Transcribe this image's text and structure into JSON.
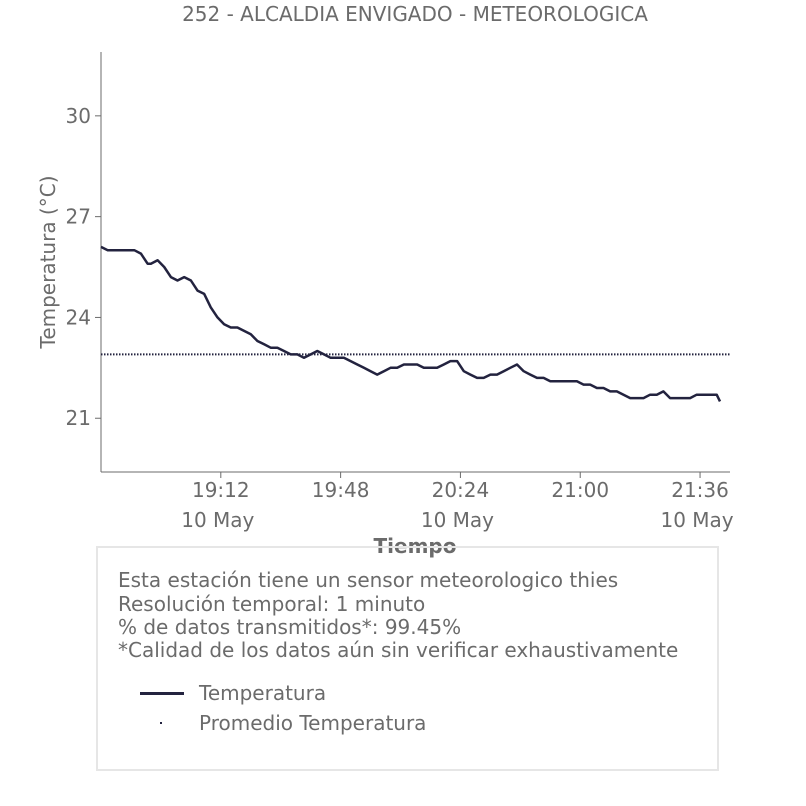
{
  "chart_data": {
    "type": "line",
    "title": "252 - ALCALDIA ENVIGADO - METEOROLOGICA",
    "xlabel": "Tiempo",
    "ylabel": "Temperatura (°C)",
    "ylim": [
      19.4,
      31.9
    ],
    "xlim": [
      "18:36",
      "21:45"
    ],
    "grid": false,
    "y_ticks": [
      "21",
      "24",
      "27",
      "30"
    ],
    "x_ticks": [
      {
        "time": "19:12",
        "date": "10 May"
      },
      {
        "time": "19:48",
        "date": ""
      },
      {
        "time": "20:24",
        "date": "10 May"
      },
      {
        "time": "21:00",
        "date": ""
      },
      {
        "time": "21:36",
        "date": "10 May"
      }
    ],
    "series": [
      {
        "name": "Temperatura",
        "color": "#23233f",
        "style": "solid",
        "x": [
          "18:36",
          "18:38",
          "18:46",
          "18:48",
          "18:50",
          "18:51",
          "18:53",
          "18:55",
          "18:57",
          "18:59",
          "19:01",
          "19:03",
          "19:05",
          "19:07",
          "19:09",
          "19:11",
          "19:13",
          "19:15",
          "19:17",
          "19:19",
          "19:21",
          "19:23",
          "19:25",
          "19:27",
          "19:29",
          "19:31",
          "19:33",
          "19:35",
          "19:37",
          "19:39",
          "19:41",
          "19:43",
          "19:45",
          "19:47",
          "19:49",
          "19:51",
          "19:53",
          "19:55",
          "19:57",
          "19:59",
          "20:01",
          "20:03",
          "20:05",
          "20:07",
          "20:09",
          "20:11",
          "20:13",
          "20:15",
          "20:17",
          "20:19",
          "20:21",
          "20:23",
          "20:25",
          "20:27",
          "20:29",
          "20:31",
          "20:33",
          "20:35",
          "20:37",
          "20:39",
          "20:41",
          "20:43",
          "20:45",
          "20:47",
          "20:49",
          "20:51",
          "20:53",
          "20:55",
          "20:57",
          "20:59",
          "21:01",
          "21:03",
          "21:05",
          "21:07",
          "21:09",
          "21:11",
          "21:13",
          "21:15",
          "21:17",
          "21:19",
          "21:21",
          "21:23",
          "21:25",
          "21:27",
          "21:29",
          "21:31",
          "21:33",
          "21:35",
          "21:37",
          "21:39",
          "21:41",
          "21:42"
        ],
        "values": [
          26.1,
          26.0,
          26.0,
          25.9,
          25.6,
          25.6,
          25.7,
          25.5,
          25.2,
          25.1,
          25.2,
          25.1,
          24.8,
          24.7,
          24.3,
          24.0,
          23.8,
          23.7,
          23.7,
          23.6,
          23.5,
          23.3,
          23.2,
          23.1,
          23.1,
          23.0,
          22.9,
          22.9,
          22.8,
          22.9,
          23.0,
          22.9,
          22.8,
          22.8,
          22.8,
          22.7,
          22.6,
          22.5,
          22.4,
          22.3,
          22.4,
          22.5,
          22.5,
          22.6,
          22.6,
          22.6,
          22.5,
          22.5,
          22.5,
          22.6,
          22.7,
          22.7,
          22.4,
          22.3,
          22.2,
          22.2,
          22.3,
          22.3,
          22.4,
          22.5,
          22.6,
          22.4,
          22.3,
          22.2,
          22.2,
          22.1,
          22.1,
          22.1,
          22.1,
          22.1,
          22.0,
          22.0,
          21.9,
          21.9,
          21.8,
          21.8,
          21.7,
          21.6,
          21.6,
          21.6,
          21.7,
          21.7,
          21.8,
          21.6,
          21.6,
          21.6,
          21.6,
          21.7,
          21.7,
          21.7,
          21.7,
          21.5
        ]
      },
      {
        "name": "Promedio Temperatura",
        "color": "#23233f",
        "style": "dotted",
        "x": [
          "18:36",
          "21:45"
        ],
        "values": [
          22.9,
          22.9
        ]
      }
    ],
    "legend_position": "bottom"
  },
  "info": {
    "lines": [
      "Esta estación tiene un sensor meteorologico thies",
      "Resolución temporal: 1 minuto",
      "% de datos transmitidos*: 99.45%",
      "*Calidad de los datos aún sin verificar exhaustivamente"
    ],
    "legend": {
      "temperatura": "Temperatura",
      "promedio": "Promedio Temperatura"
    }
  }
}
